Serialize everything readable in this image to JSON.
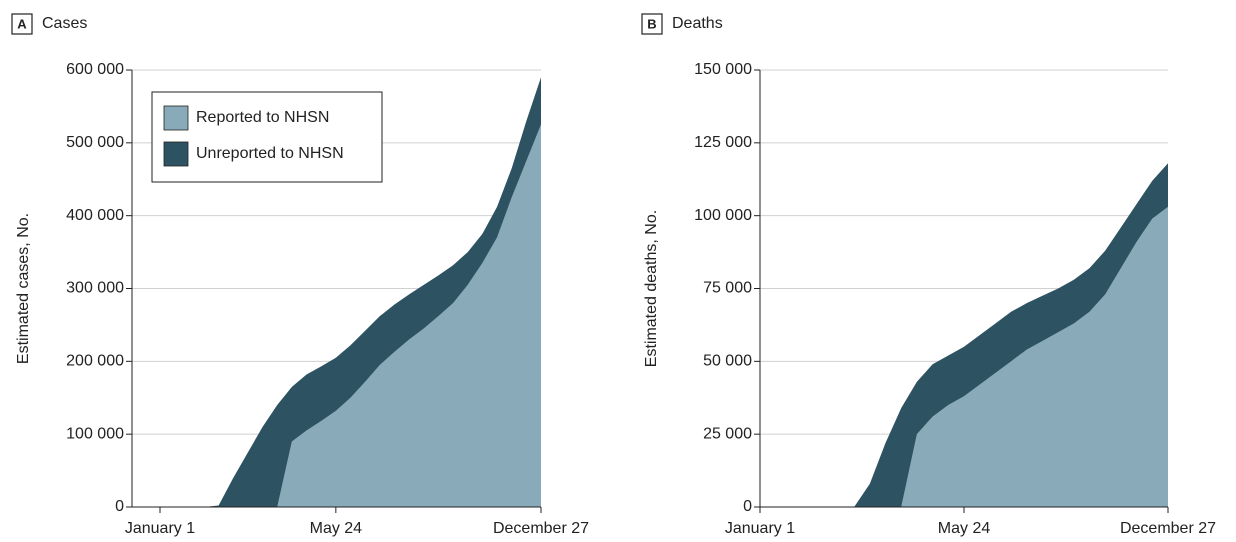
{
  "chart_data": [
    {
      "type": "area",
      "panel": "A",
      "title": "Cases",
      "ylabel": "Estimated cases, No.",
      "stacked": true,
      "grid": true,
      "legend": "upper left",
      "categories": [
        "January 1",
        null,
        null,
        null,
        null,
        null,
        null,
        null,
        null,
        null,
        null,
        null,
        "May 24",
        null,
        null,
        null,
        null,
        null,
        null,
        null,
        null,
        null,
        null,
        null,
        null,
        null,
        "December 27"
      ],
      "series": [
        {
          "name": "Reported to NHSN",
          "color": "#89aab8",
          "values": [
            0,
            0,
            0,
            0,
            0,
            0,
            0,
            0,
            0,
            90000,
            105000,
            118000,
            132000,
            150000,
            172000,
            195000,
            213000,
            230000,
            245000,
            262000,
            280000,
            305000,
            335000,
            370000,
            425000,
            475000,
            525000
          ]
        },
        {
          "name": "Unreported to NHSN",
          "color": "#2d5261",
          "values": [
            0,
            0,
            0,
            0,
            2000,
            40000,
            75000,
            110000,
            140000,
            75000,
            77000,
            75000,
            73000,
            72000,
            70000,
            67000,
            65000,
            62000,
            60000,
            56000,
            52000,
            45000,
            40000,
            42000,
            40000,
            55000,
            65000
          ]
        }
      ],
      "ylim": [
        0,
        600000
      ],
      "yticks": [
        0,
        {
          "value": 100000,
          "label": "100 000"
        },
        {
          "value": 200000,
          "label": "200 000"
        },
        {
          "value": 300000,
          "label": "300 000"
        },
        {
          "value": 400000,
          "label": "400 000"
        },
        {
          "value": 500000,
          "label": "500 000"
        },
        {
          "value": 600000,
          "label": "600 000"
        }
      ]
    },
    {
      "type": "area",
      "panel": "B",
      "title": "Deaths",
      "ylabel": "Estimated deaths, No.",
      "stacked": true,
      "grid": true,
      "categories": [
        "January 1",
        null,
        null,
        null,
        null,
        null,
        null,
        null,
        null,
        null,
        null,
        null,
        null,
        "May 24",
        null,
        null,
        null,
        null,
        null,
        null,
        null,
        null,
        null,
        null,
        null,
        null,
        "December 27"
      ],
      "series": [
        {
          "name": "Reported to NHSN",
          "color": "#89aab8",
          "values": [
            0,
            0,
            0,
            0,
            0,
            0,
            0,
            0,
            0,
            0,
            25000,
            31000,
            35000,
            38000,
            42000,
            46000,
            50000,
            54000,
            57000,
            60000,
            63000,
            67000,
            73000,
            82000,
            91000,
            99000,
            103000
          ]
        },
        {
          "name": "Unreported to NHSN",
          "color": "#2d5261",
          "values": [
            0,
            0,
            0,
            0,
            0,
            0,
            0,
            8000,
            22000,
            34000,
            18000,
            18000,
            17000,
            17000,
            17000,
            17000,
            17000,
            16000,
            15500,
            15000,
            15000,
            15000,
            15000,
            14000,
            13000,
            13000,
            15000
          ]
        }
      ],
      "ylim": [
        0,
        150000
      ],
      "yticks": [
        0,
        {
          "value": 25000,
          "label": "25 000"
        },
        {
          "value": 50000,
          "label": "50 000"
        },
        {
          "value": 75000,
          "label": "75 000"
        },
        {
          "value": 100000,
          "label": "100 000"
        },
        {
          "value": 125000,
          "label": "125 000"
        },
        {
          "value": 150000,
          "label": "150 000"
        }
      ]
    }
  ]
}
